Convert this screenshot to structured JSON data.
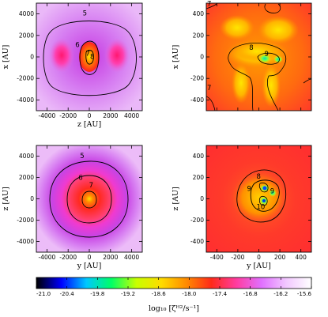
{
  "chart_data": {
    "type": "heatmap",
    "panels": [
      {
        "id": "top-left",
        "xlabel": "z [AU]",
        "ylabel": "x [AU]",
        "xlim": [
          -5000,
          5000
        ],
        "ylim": [
          -5000,
          5000
        ],
        "xticks": [
          "-4000",
          "-2000",
          "0",
          "2000",
          "4000"
        ],
        "yticks": [
          "4000",
          "2000",
          "0",
          "-2000",
          "-4000"
        ],
        "xtick_values": [
          -4000,
          -2000,
          0,
          2000,
          4000
        ],
        "ytick_values": [
          4000,
          2000,
          0,
          -2000,
          -4000
        ],
        "contour_labels": [
          {
            "text": "5",
            "x": -400,
            "y": 3950
          },
          {
            "text": "6",
            "x": -1100,
            "y": 1000
          },
          {
            "text": "7",
            "x": -120,
            "y": 200
          },
          {
            "text": "8",
            "x": 300,
            "y": -100
          }
        ]
      },
      {
        "id": "top-right",
        "xlabel": "",
        "ylabel": "x [AU]",
        "xlim": [
          -500,
          500
        ],
        "ylim": [
          -500,
          500
        ],
        "xticks": [
          "",
          "",
          "",
          "",
          ""
        ],
        "yticks": [
          "400",
          "200",
          "0",
          "-200",
          "-400"
        ],
        "xtick_values": [
          -400,
          -200,
          0,
          200,
          400
        ],
        "ytick_values": [
          400,
          200,
          0,
          -200,
          -400
        ],
        "contour_labels": [
          {
            "text": "7",
            "x": -470,
            "y": 480
          },
          {
            "text": "8",
            "x": -70,
            "y": 75
          },
          {
            "text": "9",
            "x": 75,
            "y": 15
          },
          {
            "text": "7",
            "x": -470,
            "y": -300
          }
        ]
      },
      {
        "id": "bottom-left",
        "xlabel": "y [AU]",
        "ylabel": "z [AU]",
        "xlim": [
          -5000,
          5000
        ],
        "ylim": [
          -5000,
          5000
        ],
        "xticks": [
          "-4000",
          "-2000",
          "0",
          "2000",
          "4000"
        ],
        "yticks": [
          "4000",
          "2000",
          "0",
          "-2000",
          "-4000"
        ],
        "xtick_values": [
          -4000,
          -2000,
          0,
          2000,
          4000
        ],
        "ytick_values": [
          4000,
          2000,
          0,
          -2000,
          -4000
        ],
        "contour_labels": [
          {
            "text": "5",
            "x": -650,
            "y": 3900
          },
          {
            "text": "6",
            "x": -800,
            "y": 1850
          },
          {
            "text": "7",
            "x": 200,
            "y": 1150
          }
        ]
      },
      {
        "id": "bottom-right",
        "xlabel": "y [AU]",
        "ylabel": "z [AU]",
        "xlim": [
          -500,
          500
        ],
        "ylim": [
          -500,
          500
        ],
        "xticks": [
          "-400",
          "-200",
          "0",
          "200",
          "400"
        ],
        "yticks": [
          "400",
          "200",
          "0",
          "-200",
          "-400"
        ],
        "xtick_values": [
          -400,
          -200,
          0,
          200,
          400
        ],
        "ytick_values": [
          400,
          200,
          0,
          -200,
          -400
        ],
        "contour_labels": [
          {
            "text": "8",
            "x": 0,
            "y": 195
          },
          {
            "text": "9",
            "x": -90,
            "y": 80
          },
          {
            "text": "9",
            "x": 130,
            "y": 60
          },
          {
            "text": "10",
            "x": 0,
            "y": -90
          }
        ]
      }
    ],
    "colorbar": {
      "label": "log₁₀ [ζᴴ²/s⁻¹]",
      "range": [
        -21.0,
        -15.6
      ],
      "ticks": [
        "-21.0",
        "-20.4",
        "-19.8",
        "-19.2",
        "-18.6",
        "-18.0",
        "-17.4",
        "-16.8",
        "-16.2",
        "-15.6"
      ],
      "tick_values": [
        -21.0,
        -20.4,
        -19.8,
        -19.2,
        -18.6,
        -18.0,
        -17.4,
        -16.8,
        -16.2,
        -15.6
      ],
      "colors": [
        "#000000",
        "#0000ff",
        "#00c8ff",
        "#00ff66",
        "#c8ff00",
        "#ffdc00",
        "#ff8a00",
        "#ff2a1a",
        "#ff3ca0",
        "#e070ff",
        "#f2c8ff",
        "#ffffff"
      ]
    }
  }
}
